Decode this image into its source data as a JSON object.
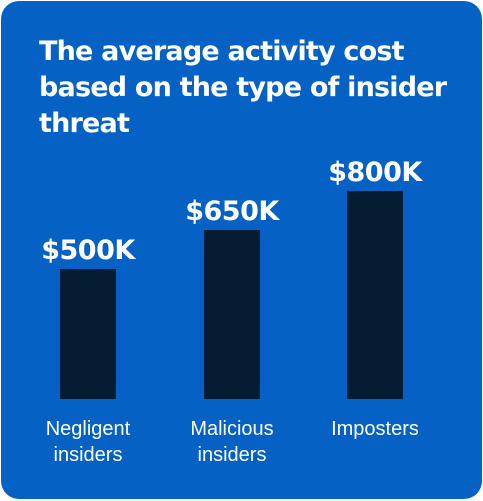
{
  "colors": {
    "background": "#0561c4",
    "bar": "#061c33",
    "text": "#ffffff"
  },
  "chart_data": {
    "type": "bar",
    "title": "The average activity cost based on the type of insider threat",
    "categories": [
      [
        "Negligent",
        "insiders"
      ],
      [
        "Malicious",
        "insiders"
      ],
      [
        "Imposters"
      ]
    ],
    "values": [
      500,
      650,
      800
    ],
    "value_labels": [
      "$500K",
      "$650K",
      "$800K"
    ],
    "unit": "K USD",
    "xlabel": "",
    "ylabel": "",
    "ylim": [
      0,
      800
    ],
    "grid": false,
    "legend": "none"
  }
}
